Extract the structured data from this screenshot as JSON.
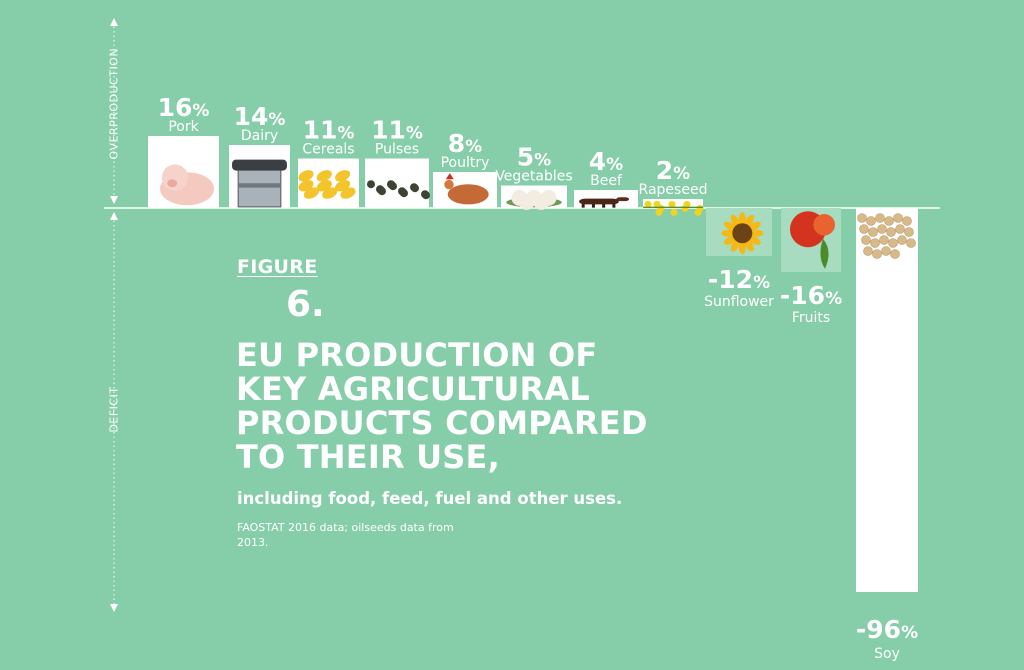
{
  "figure": {
    "label": "FIGURE",
    "number": "6.",
    "title_lines": [
      "EU PRODUCTION OF",
      "KEY AGRICULTURAL",
      "PRODUCTS COMPARED",
      "TO THEIR USE,"
    ],
    "subtitle": "including food, feed, fuel and other uses.",
    "source": "FAOSTAT 2016 data; oilseeds data from 2013."
  },
  "axis": {
    "upper_label": "OVERPRODUCTION",
    "lower_label": "DEFICIT"
  },
  "colors": {
    "background": "#86cdaa",
    "bar": "#ffffff",
    "text": "#ffffff",
    "axis_line": "#ffffff"
  },
  "chart_data": {
    "type": "bar",
    "categories": [
      "Pork",
      "Dairy",
      "Cereals",
      "Pulses",
      "Poultry",
      "Vegetables",
      "Beef",
      "Rapeseed",
      "Sunflower",
      "Fruits",
      "Soy"
    ],
    "values": [
      16,
      14,
      11,
      11,
      8,
      5,
      4,
      2,
      -12,
      -16,
      -96
    ],
    "value_labels": [
      "16%",
      "14%",
      "11%",
      "11%",
      "8%",
      "5%",
      "4%",
      "2%",
      "-12%",
      "-16%",
      "-96%"
    ],
    "icons": [
      "pig-icon",
      "milk-can-icon",
      "corn-kernels-icon",
      "lentils-icon",
      "hen-icon",
      "cauliflower-icon",
      "cow-icon",
      "rapeseed-flower-icon",
      "sunflower-icon",
      "apple-icon",
      "soybeans-icon"
    ],
    "unit": "%",
    "ylim": [
      -96,
      16
    ],
    "grid": false,
    "legend": "none"
  }
}
